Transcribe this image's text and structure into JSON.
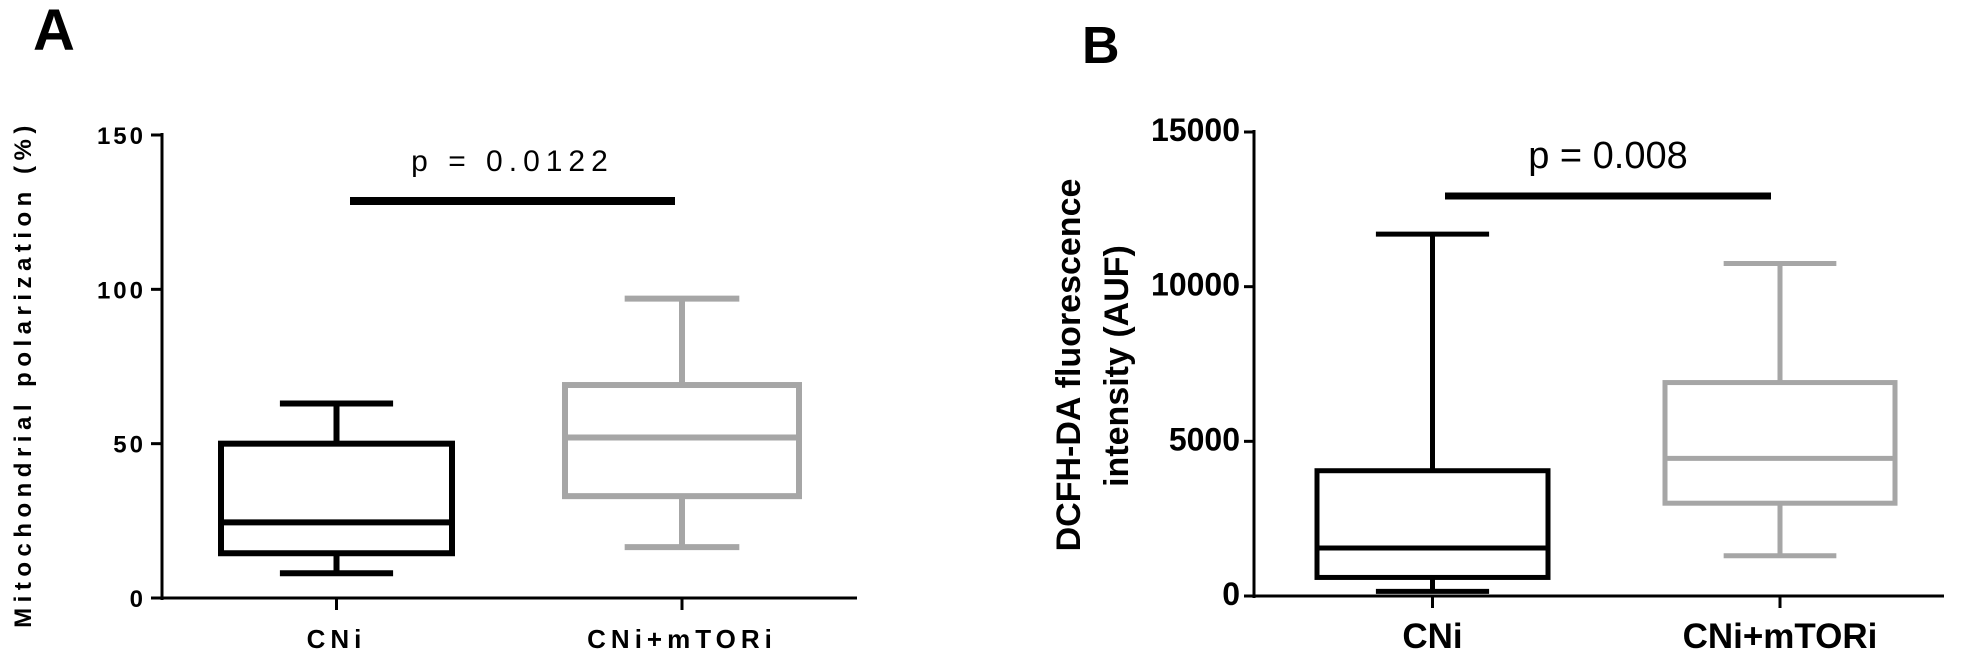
{
  "chart_data": [
    {
      "panel": "A",
      "type": "box",
      "title": "",
      "xlabel": "",
      "ylabel": "Mitochondrial polarization (%)",
      "ylim": [
        0,
        150
      ],
      "yticks": [
        0,
        50,
        100,
        150
      ],
      "categories": [
        "CNi",
        "CNi+mTORi"
      ],
      "series": [
        {
          "name": "CNi",
          "color": "#000000",
          "min": 8,
          "q1": 14.5,
          "median": 24.5,
          "q3": 50,
          "max": 63
        },
        {
          "name": "CNi+mTORi",
          "color": "#a6a6a6",
          "min": 16.5,
          "q1": 33,
          "median": 52,
          "q3": 69,
          "max": 97
        }
      ],
      "annotation": {
        "text": "p = 0.0122",
        "y": 129
      },
      "grid": false
    },
    {
      "panel": "B",
      "type": "box",
      "title": "",
      "xlabel": "",
      "ylabel_lines": [
        "DCFH-DA fluorescence",
        "intensity (AUF)"
      ],
      "ylim": [
        0,
        15000
      ],
      "yticks": [
        0,
        5000,
        10000,
        15000
      ],
      "categories": [
        "CNi",
        "CNi+mTORi"
      ],
      "series": [
        {
          "name": "CNi",
          "color": "#000000",
          "min": 150,
          "q1": 600,
          "median": 1550,
          "q3": 4050,
          "max": 11700
        },
        {
          "name": "CNi+mTORi",
          "color": "#a6a6a6",
          "min": 1300,
          "q1": 3000,
          "median": 4450,
          "q3": 6900,
          "max": 10750
        }
      ],
      "annotation": {
        "text": "p = 0.008",
        "y": 12900
      },
      "grid": false
    }
  ]
}
